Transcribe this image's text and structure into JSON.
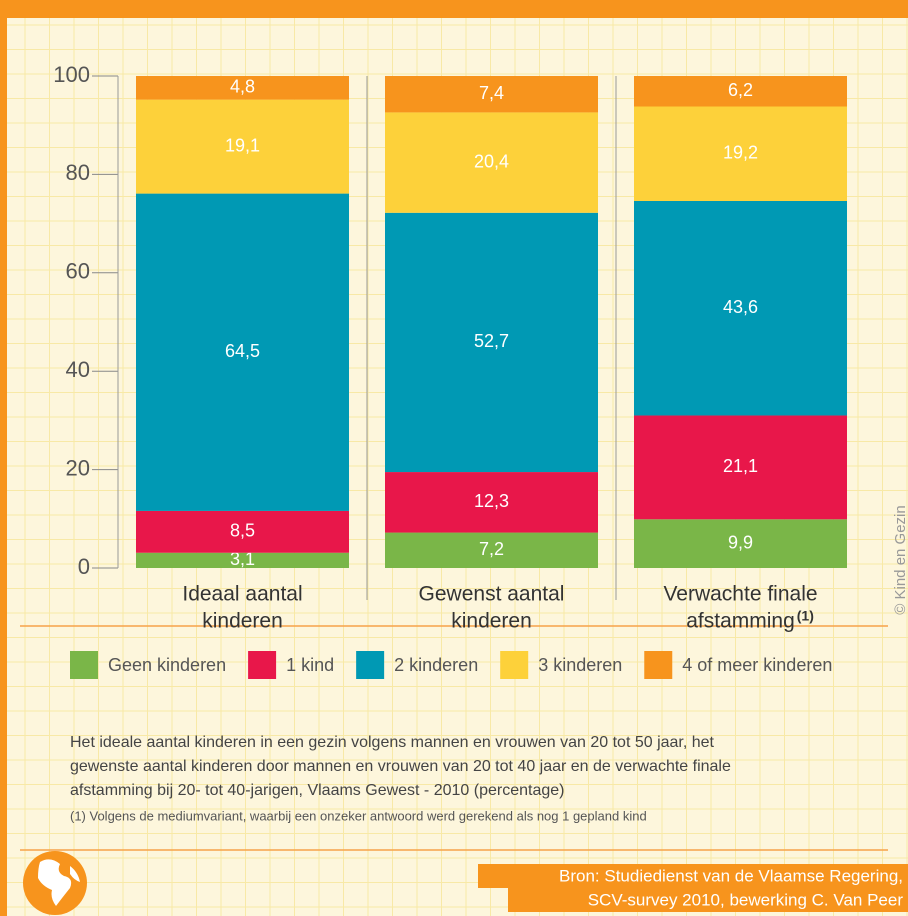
{
  "chart_data": {
    "type": "stacked_bar",
    "categories": [
      [
        "Ideaal aantal",
        "kinderen"
      ],
      [
        "Gewenst aantal",
        "kinderen"
      ],
      [
        "Verwachte finale",
        "afstamming"
      ]
    ],
    "category_notes": [
      null,
      null,
      "(1)"
    ],
    "series": [
      {
        "name": "Geen kinderen",
        "color": "#7ab648",
        "values": [
          3.1,
          7.2,
          9.9
        ],
        "value_labels": [
          "3,1",
          "7,2",
          "9,9"
        ]
      },
      {
        "name": "1 kind",
        "color": "#e8174a",
        "values": [
          8.5,
          12.3,
          21.1
        ],
        "value_labels": [
          "8,5",
          "12,3",
          "21,1"
        ]
      },
      {
        "name": "2 kinderen",
        "color": "#0099b4",
        "values": [
          64.5,
          52.7,
          43.6
        ],
        "value_labels": [
          "64,5",
          "52,7",
          "43,6"
        ]
      },
      {
        "name": "3 kinderen",
        "color": "#fdd13a",
        "values": [
          19.1,
          20.4,
          19.2
        ],
        "value_labels": [
          "19,1",
          "20,4",
          "19,2"
        ]
      },
      {
        "name": "4 of meer kinderen",
        "color": "#f7941d",
        "values": [
          4.8,
          7.4,
          6.2
        ],
        "value_labels": [
          "4,8",
          "7,4",
          "6,2"
        ]
      }
    ],
    "ylim": [
      0,
      100
    ],
    "yticks": [
      0,
      20,
      40,
      60,
      80,
      100
    ],
    "caption": [
      "Het ideale aantal kinderen in een gezin volgens mannen en vrouwen van 20 tot 50 jaar, het",
      "gewenste aantal kinderen door mannen en vrouwen van 20 tot 40 jaar en de verwachte finale",
      "afstamming bij 20- tot 40-jarigen, Vlaams Gewest - 2010 (percentage)"
    ],
    "footnote": "(1) Volgens de mediumvariant, waarbij een onzeker antwoord werd gerekend als nog 1 gepland kind",
    "source": [
      "Bron: Studiedienst van de Vlaamse Regering,",
      "SCV-survey 2010, bewerking C. Van Peer"
    ],
    "copyright": "© Kind en Gezin"
  }
}
